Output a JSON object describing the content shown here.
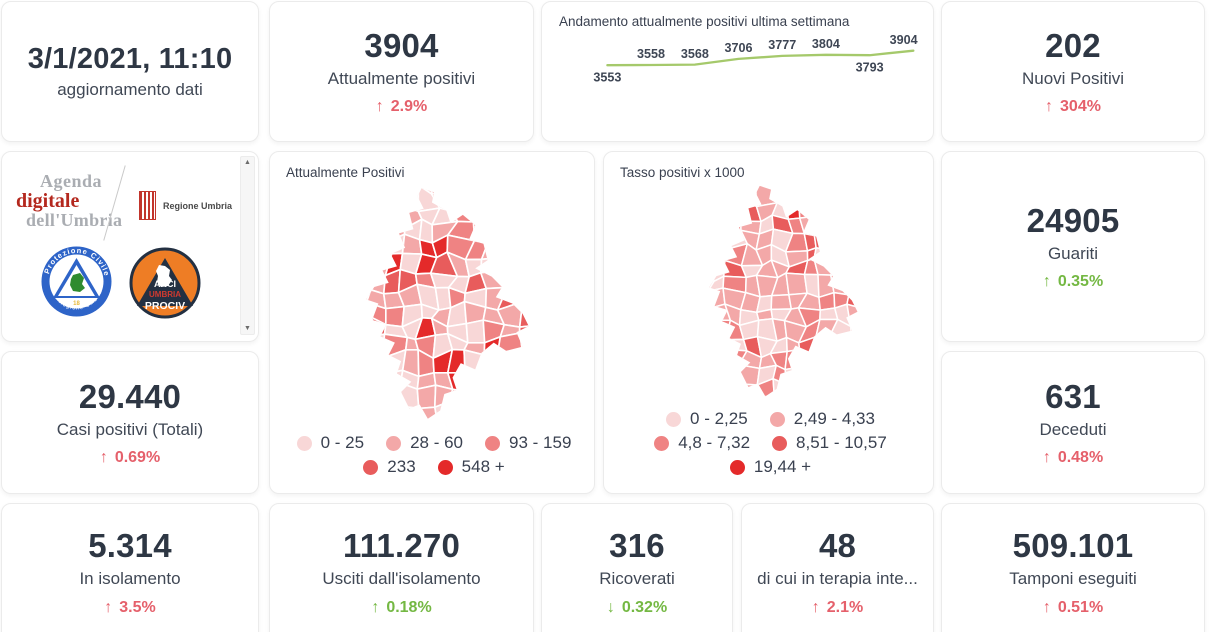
{
  "colors": {
    "red": "#e5606b",
    "green": "#74b843",
    "number": "#2e3744",
    "label": "#404855",
    "line_green": "#a5c96b",
    "map_bright_red": "#e42a2a"
  },
  "icons": {
    "scroll_up": "▲",
    "scroll_down": "▼",
    "up_arrow": "↑",
    "down_arrow": "↓"
  },
  "cards": {
    "updated": {
      "value": "3/1/2021, 11:10",
      "label": "aggiornamento dati"
    },
    "attualmente_positivi": {
      "value": "3904",
      "label": "Attualmente positivi",
      "delta": {
        "arrow": "↑",
        "value": "2.9%",
        "color": "red"
      }
    },
    "nuovi_positivi": {
      "value": "202",
      "label": "Nuovi Positivi",
      "delta": {
        "arrow": "↑",
        "value": "304%",
        "color": "red"
      }
    },
    "guariti": {
      "value": "24905",
      "label": "Guariti",
      "delta": {
        "arrow": "↑",
        "value": "0.35%",
        "color": "green"
      }
    },
    "deceduti": {
      "value": "631",
      "label": "Deceduti",
      "delta": {
        "arrow": "↑",
        "value": "0.48%",
        "color": "red"
      }
    },
    "casi_totali": {
      "value": "29.440",
      "label": "Casi positivi (Totali)",
      "delta": {
        "arrow": "↑",
        "value": "0.69%",
        "color": "red"
      }
    },
    "in_isolamento": {
      "value": "5.314",
      "label": "In isolamento",
      "delta": {
        "arrow": "↑",
        "value": "3.5%",
        "color": "red"
      }
    },
    "usciti_isolamento": {
      "value": "111.270",
      "label": "Usciti dall'isolamento",
      "delta": {
        "arrow": "↑",
        "value": "0.18%",
        "color": "green"
      }
    },
    "ricoverati": {
      "value": "316",
      "label": "Ricoverati",
      "delta": {
        "arrow": "↓",
        "value": "0.32%",
        "color": "green"
      }
    },
    "terapia_intensiva": {
      "value": "48",
      "label": "di cui in terapia inte...",
      "delta": {
        "arrow": "↑",
        "value": "2.1%",
        "color": "red"
      }
    },
    "tamponi": {
      "value": "509.101",
      "label": "Tamponi eseguiti",
      "delta": {
        "arrow": "↑",
        "value": "0.51%",
        "color": "red"
      }
    }
  },
  "logos": {
    "agenda_line1": "Agenda",
    "agenda_line2": "digitale",
    "agenda_line3": "dell'Umbria",
    "regione_umbria": "Regione Umbria",
    "protezione_civile_top": "Protezione Civile",
    "protezione_civile_bottom": "Regione Umbria",
    "anci": "ANCI",
    "anci_umbria": "UMBRIA",
    "prociv": "PROCIV"
  },
  "chart_data": [
    {
      "type": "line",
      "title": "Andamento attualmente positivi ultima settimana",
      "values": [
        3553,
        3558,
        3568,
        3706,
        3777,
        3804,
        3793,
        3904
      ],
      "label_below": [
        true,
        false,
        false,
        false,
        false,
        false,
        true,
        false
      ],
      "line_color": "#a5c96b",
      "ylim": [
        3500,
        3950
      ],
      "grid": false,
      "legend_position": "none"
    },
    {
      "type": "choropleth",
      "title": "Attualmente Positivi",
      "region": "Umbria",
      "palette": [
        "#f8d7d7",
        "#f3a8a8",
        "#ef8383",
        "#e85c5c",
        "#e42a2a"
      ],
      "legend": {
        "rows": [
          [
            {
              "label": "0 - 25",
              "color": "#f8d7d7"
            },
            {
              "label": "28 - 60",
              "color": "#f3a8a8"
            },
            {
              "label": "93 - 159",
              "color": "#ef8383"
            }
          ],
          [
            {
              "label": "233",
              "color": "#e85c5c"
            },
            {
              "label": "548 +",
              "color": "#e42a2a"
            }
          ]
        ]
      },
      "weights": [
        0.44,
        0.27,
        0.17,
        0.09,
        0.03
      ],
      "seed": 11,
      "highlights": [
        {
          "x": 0.47,
          "y": 0.29,
          "r": 0.085,
          "c": 4
        },
        {
          "x": 0.53,
          "y": 0.73,
          "r": 0.06,
          "c": 4
        },
        {
          "x": 0.2,
          "y": 0.1,
          "r": 0.09,
          "c": 3
        },
        {
          "x": 0.69,
          "y": 0.19,
          "r": 0.1,
          "c": 2
        },
        {
          "x": 0.35,
          "y": 0.4,
          "r": 0.045,
          "c": 3
        }
      ]
    },
    {
      "type": "choropleth",
      "title": "Tasso positivi x 1000",
      "region": "Umbria",
      "palette": [
        "#f8d7d7",
        "#f3a8a8",
        "#ef8383",
        "#e85c5c",
        "#e42a2a"
      ],
      "legend": {
        "rows": [
          [
            {
              "label": "0 - 2,25",
              "color": "#f8d7d7"
            },
            {
              "label": "2,49 - 4,33",
              "color": "#f3a8a8"
            }
          ],
          [
            {
              "label": "4,8 - 7,32",
              "color": "#ef8383"
            },
            {
              "label": "8,51 - 10,57",
              "color": "#e85c5c"
            }
          ],
          [
            {
              "label": "19,44 +",
              "color": "#e42a2a"
            }
          ]
        ]
      },
      "weights": [
        0.3,
        0.38,
        0.22,
        0.09,
        0.01
      ],
      "seed": 29,
      "highlights": [
        {
          "x": 0.64,
          "y": 0.64,
          "r": 0.035,
          "c": 4
        },
        {
          "x": 0.75,
          "y": 0.28,
          "r": 0.06,
          "c": 3
        },
        {
          "x": 0.05,
          "y": 0.52,
          "r": 0.045,
          "c": 3
        },
        {
          "x": 0.28,
          "y": 0.1,
          "r": 0.06,
          "c": 2
        },
        {
          "x": 0.58,
          "y": 0.8,
          "r": 0.06,
          "c": 2
        }
      ]
    }
  ]
}
